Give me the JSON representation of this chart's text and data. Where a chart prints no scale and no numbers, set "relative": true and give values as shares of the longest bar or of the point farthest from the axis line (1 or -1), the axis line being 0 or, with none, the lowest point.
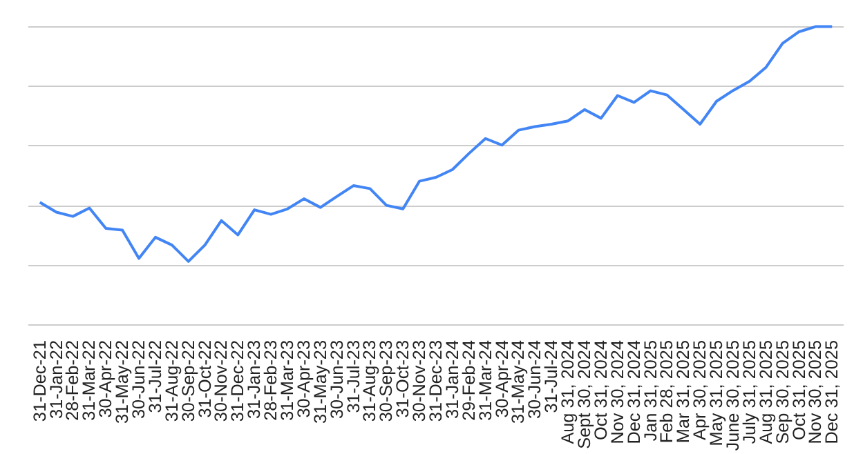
{
  "chart_data": {
    "type": "line",
    "relative": true,
    "grid": "y",
    "marker": "none",
    "line_style": "solid",
    "tick_labels": "x",
    "categories": [
      "31-Dec-21",
      "31-Jan-22",
      "28-Feb-22",
      "31-Mar-22",
      "30-Apr-22",
      "31-May-22",
      "30-Jun-22",
      "31-Jul-22",
      "31-Aug-22",
      "30-Sep-22",
      "31-Oct-22",
      "30-Nov-22",
      "31-Dec-22",
      "31-Jan-23",
      "28-Feb-23",
      "31-Mar-23",
      "30-Apr-23",
      "31-May-23",
      "30-Jun-23",
      "31-Jul-23",
      "31-Aug-23",
      "30-Sep-23",
      "31-Oct-23",
      "30-Nov-23",
      "31-Dec-23",
      "31-Jan-24",
      "29-Feb-24",
      "31-Mar-24",
      "30-Apr-24",
      "31-May-24",
      "30-Jun-24",
      "31-Jul-24",
      "Aug 31, 2024",
      "Sept 30, 2024",
      "Oct 31, 2024",
      "Nov 30, 2024",
      "Dec 31, 2024",
      "Jan 31, 2025",
      "Feb 28, 2025",
      "Mar 31, 2025",
      "Apr 30, 2025",
      "May 31, 2025",
      "June 30, 2025",
      "July 31, 2025",
      "Aug 31, 2025",
      "Sep 30, 2025",
      "Oct 31, 2025",
      "Nov 30, 2025",
      "Dec 31, 2025"
    ],
    "series": [
      {
        "color": "#4285f4",
        "values": [
          0.411,
          0.378,
          0.364,
          0.392,
          0.324,
          0.318,
          0.223,
          0.294,
          0.268,
          0.213,
          0.268,
          0.35,
          0.302,
          0.386,
          0.371,
          0.389,
          0.423,
          0.394,
          0.431,
          0.467,
          0.457,
          0.401,
          0.389,
          0.482,
          0.495,
          0.521,
          0.575,
          0.625,
          0.603,
          0.653,
          0.665,
          0.673,
          0.684,
          0.722,
          0.693,
          0.769,
          0.746,
          0.785,
          0.771,
          0.722,
          0.673,
          0.75,
          0.786,
          0.817,
          0.864,
          0.944,
          0.983,
          1,
          1
        ]
      }
    ]
  }
}
